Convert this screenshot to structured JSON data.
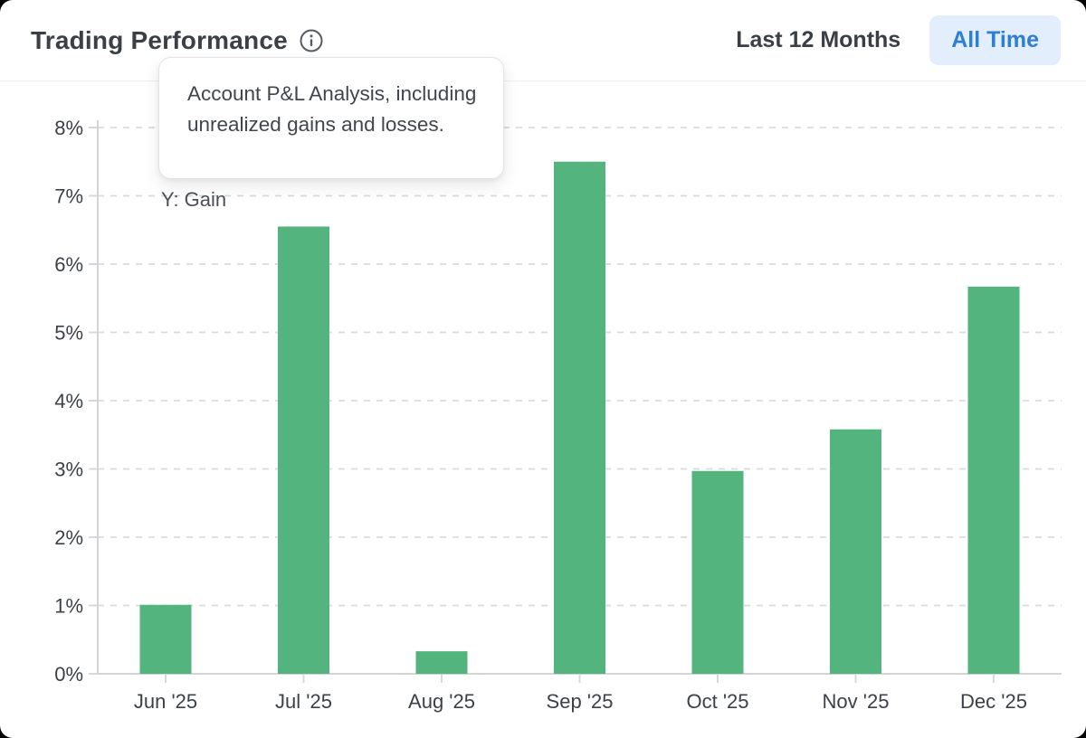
{
  "header": {
    "title": "Trading Performance",
    "info_icon": "info-circle-icon",
    "range_label": "Last 12 Months",
    "all_time_label": "All Time"
  },
  "tooltip": {
    "text": "Account P&L Analysis, including unrealized gains and losses."
  },
  "colors": {
    "bar_green": "#53b47d",
    "accent_blue_text": "#2e7ed5",
    "accent_blue_bg": "#e3eefc",
    "text_dark": "#3b4046",
    "gridline": "#d9dbdd"
  },
  "chart_data": {
    "type": "bar",
    "title": "Trading Performance",
    "categories": [
      "Jun '25",
      "Jul '25",
      "Aug '25",
      "Sep '25",
      "Oct '25",
      "Nov '25",
      "Dec '25"
    ],
    "values": [
      1.01,
      6.55,
      0.33,
      7.5,
      2.97,
      3.58,
      5.67
    ],
    "value_unit": "%",
    "xlabel": "",
    "ylabel": "Y: Gain",
    "ylim": [
      0,
      8
    ],
    "y_tick_labels": [
      "0%",
      "1%",
      "2%",
      "3%",
      "4%",
      "5%",
      "6%",
      "7%",
      "8%"
    ],
    "grid": "horizontal-dashed",
    "legend_position": "none",
    "bar_color": "#53b47d"
  }
}
